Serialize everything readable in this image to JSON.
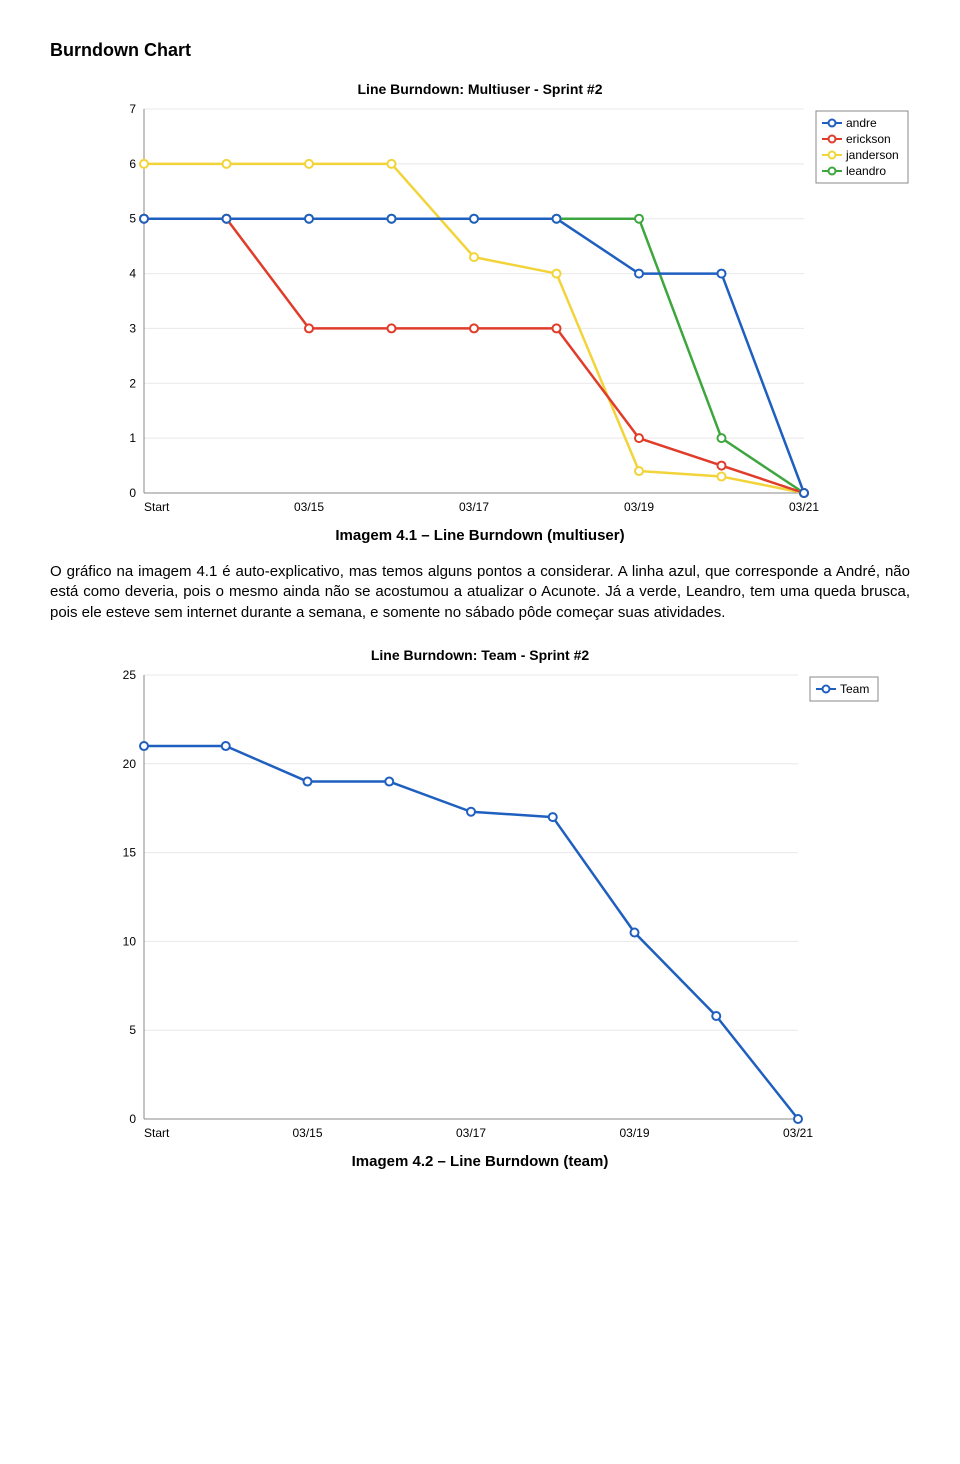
{
  "heading": "Burndown Chart",
  "chart1": {
    "type": "line",
    "title": "Line Burndown: Multiuser - Sprint #2",
    "x_categories": [
      "Start",
      "03/15",
      "03/17",
      "03/19",
      "03/21"
    ],
    "x_indices": [
      0,
      1,
      2,
      3,
      4,
      5,
      6,
      7,
      8
    ],
    "ylim": [
      0,
      7
    ],
    "ytick_step": 1,
    "background_color": "#ffffff",
    "grid_color": "#e8e8e8",
    "axis_color": "#888888",
    "line_width": 2.5,
    "marker_radius": 4,
    "marker_fill": "#ffffff",
    "legend": {
      "position": "top-right",
      "border_color": "#888888",
      "items": [
        {
          "label": "andre",
          "color": "#1f5fbf"
        },
        {
          "label": "erickson",
          "color": "#e03c2a"
        },
        {
          "label": "janderson",
          "color": "#f2d43a"
        },
        {
          "label": "leandro",
          "color": "#3ea63e"
        }
      ]
    },
    "series": [
      {
        "name": "janderson",
        "color": "#f2d43a",
        "points": [
          [
            0,
            6
          ],
          [
            1,
            6
          ],
          [
            2,
            6
          ],
          [
            3,
            6
          ],
          [
            4,
            4.3
          ],
          [
            5,
            4
          ],
          [
            6,
            0.4
          ],
          [
            7,
            0.3
          ],
          [
            8,
            0
          ]
        ]
      },
      {
        "name": "leandro",
        "color": "#3ea63e",
        "points": [
          [
            0,
            5
          ],
          [
            1,
            5
          ],
          [
            2,
            5
          ],
          [
            3,
            5
          ],
          [
            4,
            5
          ],
          [
            5,
            5
          ],
          [
            6,
            5
          ],
          [
            7,
            1
          ],
          [
            8,
            0
          ]
        ]
      },
      {
        "name": "erickson",
        "color": "#e03c2a",
        "points": [
          [
            0,
            5
          ],
          [
            1,
            5
          ],
          [
            2,
            3
          ],
          [
            3,
            3
          ],
          [
            4,
            3
          ],
          [
            5,
            3
          ],
          [
            6,
            1
          ],
          [
            7,
            0.5
          ],
          [
            8,
            0
          ]
        ]
      },
      {
        "name": "andre",
        "color": "#1f5fbf",
        "points": [
          [
            0,
            5
          ],
          [
            1,
            5
          ],
          [
            2,
            5
          ],
          [
            3,
            5
          ],
          [
            4,
            5
          ],
          [
            5,
            5
          ],
          [
            6,
            4
          ],
          [
            7,
            4
          ],
          [
            8,
            0
          ]
        ]
      }
    ]
  },
  "caption1": "Imagem 4.1 – Line Burndown (multiuser)",
  "paragraph": "O gráfico na imagem 4.1 é auto-explicativo, mas temos alguns pontos a considerar. A linha azul, que corresponde a André, não está como deveria, pois o mesmo ainda não se acostumou a atualizar o Acunote. Já a verde, Leandro, tem uma queda brusca, pois ele esteve sem internet durante a semana, e somente no sábado pôde começar suas atividades.",
  "chart2": {
    "type": "line",
    "title": "Line Burndown: Team - Sprint #2",
    "x_categories": [
      "Start",
      "03/15",
      "03/17",
      "03/19",
      "03/21"
    ],
    "x_indices": [
      0,
      1,
      2,
      3,
      4,
      5,
      6,
      7,
      8
    ],
    "ylim": [
      0,
      25
    ],
    "ytick_step": 5,
    "background_color": "#ffffff",
    "grid_color": "#e8e8e8",
    "axis_color": "#888888",
    "line_width": 2.5,
    "marker_radius": 4,
    "marker_fill": "#ffffff",
    "legend": {
      "position": "top-right",
      "border_color": "#888888",
      "items": [
        {
          "label": "Team",
          "color": "#1f5fbf"
        }
      ]
    },
    "series": [
      {
        "name": "Team",
        "color": "#1f5fbf",
        "points": [
          [
            0,
            21
          ],
          [
            1,
            21
          ],
          [
            2,
            19
          ],
          [
            3,
            19
          ],
          [
            4,
            17.3
          ],
          [
            5,
            17
          ],
          [
            6,
            10.5
          ],
          [
            7,
            5.8
          ],
          [
            8,
            0
          ]
        ]
      }
    ]
  },
  "caption2": "Imagem 4.2 – Line Burndown (team)"
}
